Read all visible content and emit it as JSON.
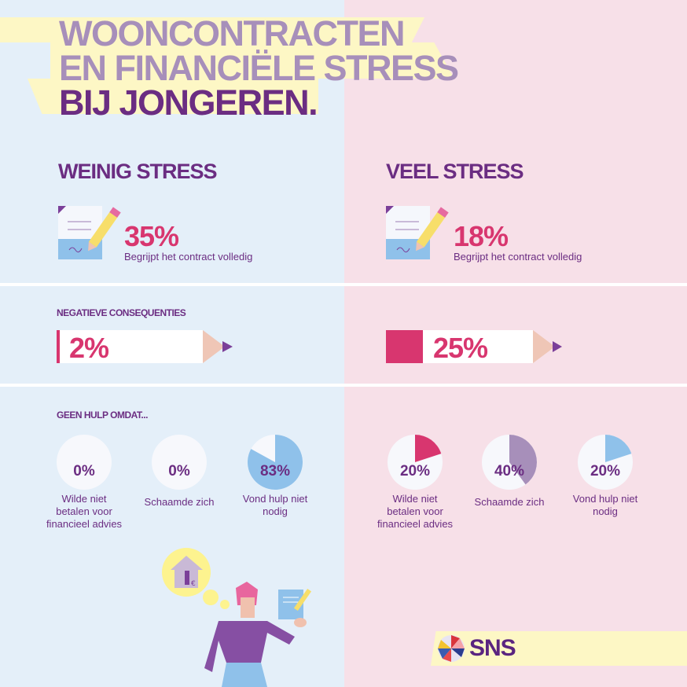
{
  "title": {
    "line1": "WOONCONTRACTEN",
    "line2": "EN FINANCIËLE STRESS",
    "line3": "BIJ JONGEREN."
  },
  "colors": {
    "left_bg": "#e4eff9",
    "right_bg": "#f7e0e8",
    "purple": "#6b2d82",
    "magenta": "#d8366f",
    "light_purple": "#a78fba",
    "light_blue": "#8fc1ea",
    "yellow": "#fdf7c5"
  },
  "left": {
    "heading": "WEINIG STRESS",
    "contract": {
      "value": "35%",
      "caption": "Begrijpt het contract volledig"
    },
    "negative": {
      "value": "2%"
    }
  },
  "right": {
    "heading": "VEEL STRESS",
    "contract": {
      "value": "18%",
      "caption": "Begrijpt het contract volledig"
    },
    "negative": {
      "value": "25%"
    }
  },
  "negative_heading": "NEGATIEVE CONSEQUENTIES",
  "no_help_heading": "GEEN HULP OMDAT...",
  "logo": {
    "text": "SNS"
  },
  "chart_data": {
    "type": "pie",
    "title": "GEEN HULP OMDAT...",
    "categories": [
      "Wilde niet betalen voor financieel advies",
      "Schaamde zich",
      "Vond hulp niet nodig"
    ],
    "series": [
      {
        "name": "WEINIG STRESS",
        "values": [
          0,
          0,
          83
        ],
        "labels": [
          "0%",
          "0%",
          "83%"
        ],
        "colors": [
          "#d8366f",
          "#a78fba",
          "#8fc1ea"
        ]
      },
      {
        "name": "VEEL STRESS",
        "values": [
          20,
          40,
          20
        ],
        "labels": [
          "20%",
          "40%",
          "20%"
        ],
        "colors": [
          "#d8366f",
          "#a78fba",
          "#8fc1ea"
        ]
      }
    ],
    "labels": {
      "c0": "Wilde niet betalen voor financieel advies",
      "c1": "Schaamde zich",
      "c2": "Vond hulp niet nodig"
    }
  }
}
